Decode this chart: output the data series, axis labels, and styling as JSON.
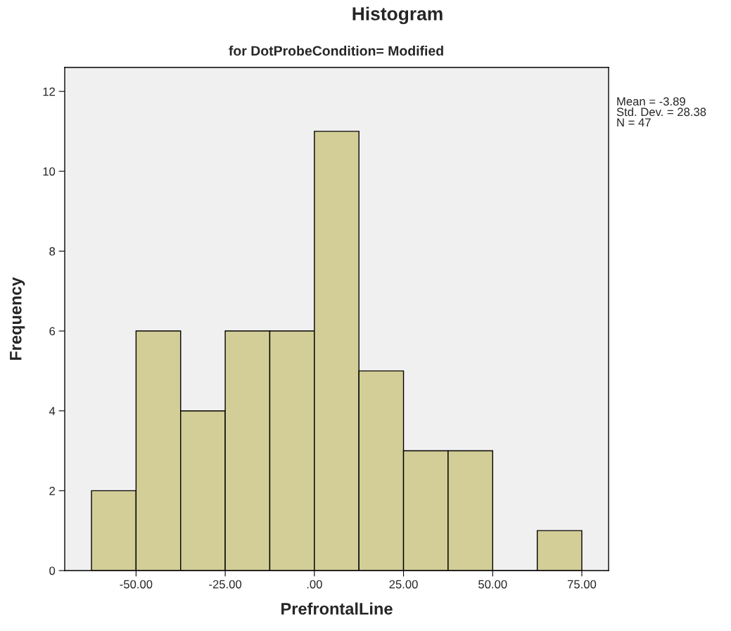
{
  "chart_data": {
    "type": "histogram",
    "title": "Histogram",
    "subtitle": "for DotProbeCondition= Modified",
    "xlabel": "PrefrontalLine",
    "ylabel": "Frequency",
    "bins": [
      -62.5,
      -50,
      -37.5,
      -25,
      -12.5,
      0,
      12.5,
      25,
      37.5,
      50,
      62.5,
      75
    ],
    "values": [
      2,
      6,
      4,
      6,
      6,
      11,
      5,
      3,
      3,
      0,
      1
    ],
    "color": "#d3ce97",
    "xlim": [
      -70,
      82.5
    ],
    "ylim": [
      0,
      12.6
    ],
    "xticks": [
      {
        "value": -50,
        "label": "-50.00"
      },
      {
        "value": -25,
        "label": "-25.00"
      },
      {
        "value": 0,
        "label": ".00"
      },
      {
        "value": 25,
        "label": "25.00"
      },
      {
        "value": 50,
        "label": "50.00"
      },
      {
        "value": 75,
        "label": "75.00"
      }
    ],
    "yticks": [
      0,
      2,
      4,
      6,
      8,
      10,
      12
    ],
    "grid": false,
    "annotations": [
      "Mean = -3.89\nStd. Dev. = 28.38\nN = 47"
    ]
  }
}
